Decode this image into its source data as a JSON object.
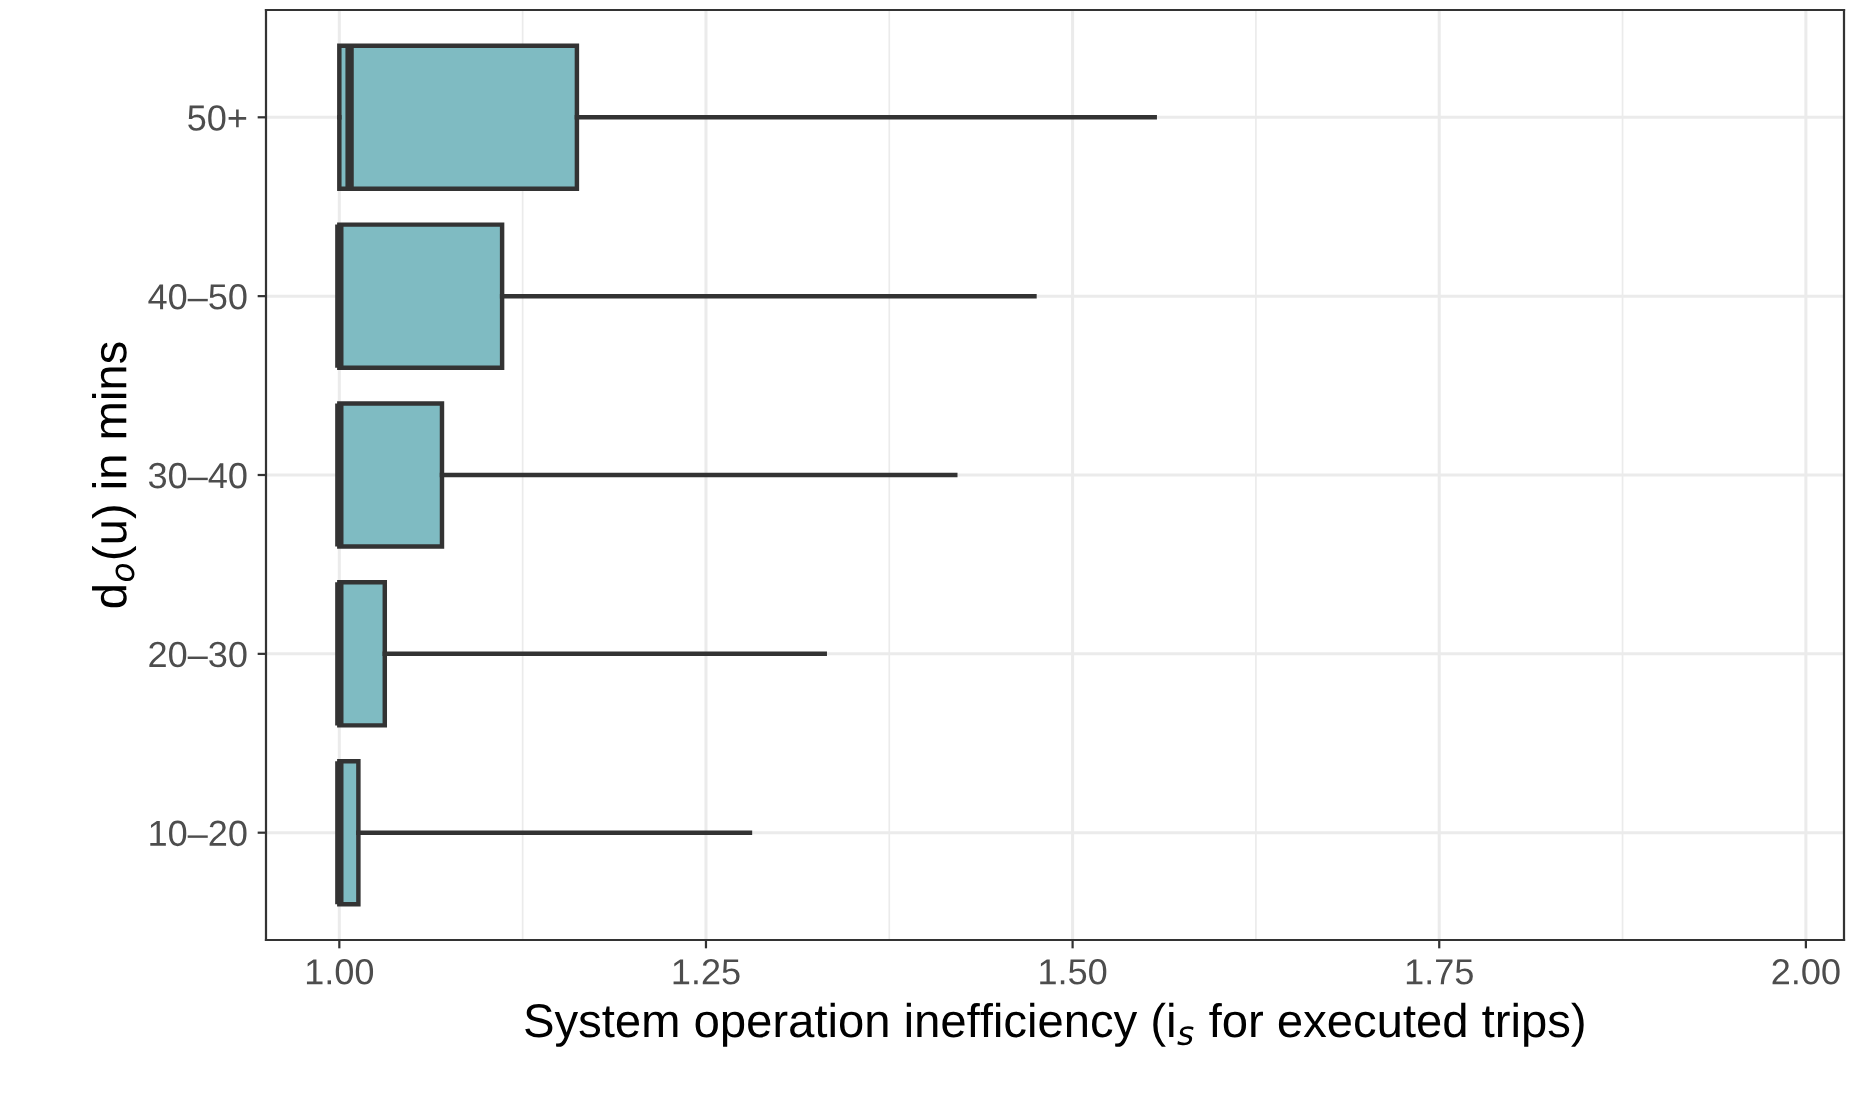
{
  "chart_data": {
    "type": "box",
    "orientation": "horizontal",
    "xlabel": "System operation inefficiency (i$_{s}$ for executed trips)",
    "ylabel": "d$_{o}$(u) in mins",
    "categories": [
      "50+",
      "40–50",
      "30–40",
      "20–30",
      "10–20"
    ],
    "color": "#7fbbc2",
    "boxes": [
      {
        "low": 1.0,
        "q1": 1.0,
        "median": 1.007,
        "q3": 1.162,
        "high": 1.556
      },
      {
        "low": 1.0,
        "q1": 1.0,
        "median": 1.0,
        "q3": 1.111,
        "high": 1.474
      },
      {
        "low": 1.0,
        "q1": 1.0,
        "median": 1.0,
        "q3": 1.07,
        "high": 1.42
      },
      {
        "low": 1.0,
        "q1": 1.0,
        "median": 1.0,
        "q3": 1.031,
        "high": 1.331
      },
      {
        "low": 1.0,
        "q1": 1.0,
        "median": 1.0,
        "q3": 1.013,
        "high": 1.28
      }
    ],
    "xlim": [
      0.95,
      2.026
    ],
    "xticks": [
      {
        "value": 1.0,
        "label": "1.00"
      },
      {
        "value": 1.25,
        "label": "1.25"
      },
      {
        "value": 1.5,
        "label": "1.50"
      },
      {
        "value": 1.75,
        "label": "1.75"
      },
      {
        "value": 2.0,
        "label": "2.00"
      }
    ],
    "grid": true
  }
}
